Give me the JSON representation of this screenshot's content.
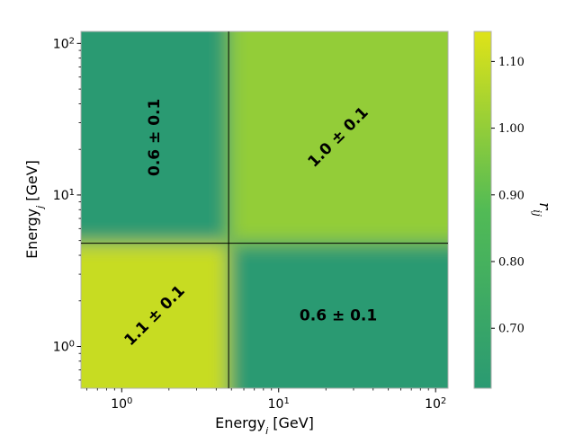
{
  "chart_data": {
    "type": "heatmap",
    "xlabel": "Energy",
    "xlabel_subscript": "i",
    "xlabel_unit": " [GeV]",
    "ylabel": "Energy",
    "ylabel_subscript": "j",
    "ylabel_unit": " [GeV]",
    "xscale": "log",
    "yscale": "log",
    "xlim": [
      0.55,
      120
    ],
    "ylim": [
      0.53,
      120
    ],
    "x_ticks": [
      {
        "value": 1,
        "base": "10",
        "exp": "0"
      },
      {
        "value": 10,
        "base": "10",
        "exp": "1"
      },
      {
        "value": 100,
        "base": "10",
        "exp": "2"
      }
    ],
    "y_ticks": [
      {
        "value": 1,
        "base": "10",
        "exp": "0"
      },
      {
        "value": 10,
        "base": "10",
        "exp": "1"
      },
      {
        "value": 100,
        "base": "10",
        "exp": "2"
      }
    ],
    "bin_edge": 4.8,
    "cells": [
      {
        "name": "low-low",
        "x_range": [
          0.55,
          4.8
        ],
        "y_range": [
          0.53,
          4.8
        ],
        "value": 1.1,
        "label": "1.1 ± 0.1",
        "rotation": -45
      },
      {
        "name": "high-low",
        "x_range": [
          4.8,
          120
        ],
        "y_range": [
          0.53,
          4.8
        ],
        "value": 0.6,
        "label": "0.6 ± 0.1",
        "rotation": 0
      },
      {
        "name": "low-high",
        "x_range": [
          0.55,
          4.8
        ],
        "y_range": [
          4.8,
          120
        ],
        "value": 0.6,
        "label": "0.6 ± 0.1",
        "rotation": -90
      },
      {
        "name": "high-high",
        "x_range": [
          4.8,
          120
        ],
        "y_range": [
          4.8,
          120
        ],
        "value": 1.0,
        "label": "1.0 ± 0.1",
        "rotation": -45
      }
    ],
    "colorbar": {
      "label": "r",
      "label_subscript": "ij",
      "vmin": 0.61,
      "vmax": 1.145,
      "ticks": [
        "0.70",
        "0.80",
        "0.90",
        "1.00",
        "1.10"
      ],
      "colors": {
        "low": "#2a9a72",
        "mid": "#52bb55",
        "high": "#dfe318"
      }
    },
    "line_color": "#000000"
  }
}
